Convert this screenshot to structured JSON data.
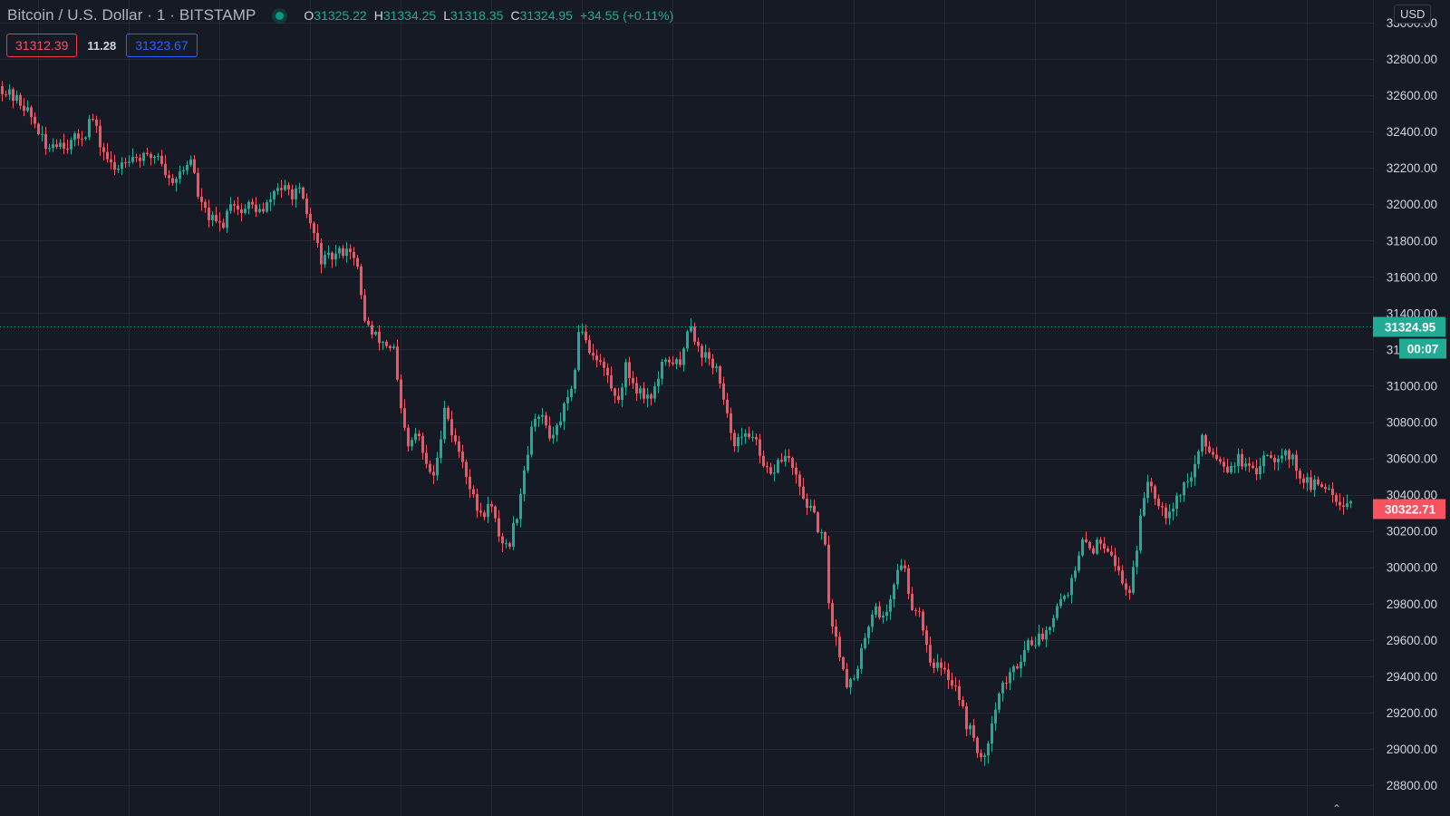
{
  "header": {
    "symbol_title": "Bitcoin / U.S. Dollar · 1 · BITSTAMP",
    "status": "market-open",
    "ohlc": {
      "o_label": "O",
      "o_value": "31325.22",
      "h_label": "H",
      "h_value": "31334.25",
      "l_label": "L",
      "l_value": "31318.35",
      "c_label": "C",
      "c_value": "31324.95",
      "change": "+34.55 (+0.11%)"
    }
  },
  "order_buttons": {
    "sell_price": "31312.39",
    "spread": "11.28",
    "buy_price": "31323.67"
  },
  "price_scale": {
    "currency": "USD",
    "ticks": [
      "33000.00",
      "32800.00",
      "32600.00",
      "32400.00",
      "32200.00",
      "32000.00",
      "31800.00",
      "31600.00",
      "31400.00",
      "31200.00",
      "31000.00",
      "30800.00",
      "30600.00",
      "30400.00",
      "30200.00",
      "30000.00",
      "29800.00",
      "29600.00",
      "29400.00",
      "29200.00",
      "29000.00",
      "28800.00"
    ],
    "last_price_label": "31324.95",
    "countdown_label": "00:07",
    "crosshair_price_label": "30322.71"
  },
  "colors": {
    "background": "#161a25",
    "grid": "#232733",
    "up": "#22ab94",
    "down": "#f7525f",
    "last_price": "#22ab94",
    "crosshair": "#f7525f",
    "axis_text": "#d1d4dc"
  },
  "chart_data": {
    "type": "candlestick",
    "title": "Bitcoin / U.S. Dollar · 1 · BITSTAMP",
    "ylim": [
      28750,
      33050
    ],
    "grid": true,
    "last_price": 31324.95,
    "crosshair_price": 30322.71,
    "price_path": [
      [
        0,
        32650
      ],
      [
        10,
        32600
      ],
      [
        25,
        32550
      ],
      [
        40,
        32430
      ],
      [
        50,
        32300
      ],
      [
        60,
        32350
      ],
      [
        75,
        32330
      ],
      [
        95,
        32400
      ],
      [
        100,
        32500
      ],
      [
        110,
        32330
      ],
      [
        125,
        32180
      ],
      [
        140,
        32270
      ],
      [
        160,
        32250
      ],
      [
        175,
        32280
      ],
      [
        185,
        32130
      ],
      [
        200,
        32170
      ],
      [
        210,
        32260
      ],
      [
        220,
        32000
      ],
      [
        235,
        31900
      ],
      [
        245,
        31880
      ],
      [
        255,
        32040
      ],
      [
        265,
        31950
      ],
      [
        275,
        32000
      ],
      [
        290,
        31950
      ],
      [
        305,
        32100
      ],
      [
        320,
        32060
      ],
      [
        330,
        32060
      ],
      [
        345,
        31850
      ],
      [
        355,
        31680
      ],
      [
        370,
        31720
      ],
      [
        385,
        31770
      ],
      [
        395,
        31620
      ],
      [
        400,
        31400
      ],
      [
        410,
        31280
      ],
      [
        425,
        31230
      ],
      [
        435,
        31200
      ],
      [
        440,
        30900
      ],
      [
        450,
        30650
      ],
      [
        460,
        30750
      ],
      [
        470,
        30550
      ],
      [
        480,
        30500
      ],
      [
        490,
        30900
      ],
      [
        500,
        30700
      ],
      [
        510,
        30600
      ],
      [
        520,
        30400
      ],
      [
        530,
        30280
      ],
      [
        540,
        30350
      ],
      [
        550,
        30180
      ],
      [
        560,
        30100
      ],
      [
        570,
        30300
      ],
      [
        580,
        30600
      ],
      [
        590,
        30850
      ],
      [
        600,
        30800
      ],
      [
        610,
        30700
      ],
      [
        620,
        30850
      ],
      [
        630,
        30950
      ],
      [
        640,
        31350
      ],
      [
        650,
        31200
      ],
      [
        660,
        31150
      ],
      [
        670,
        31050
      ],
      [
        680,
        30900
      ],
      [
        690,
        31100
      ],
      [
        700,
        31000
      ],
      [
        710,
        30950
      ],
      [
        720,
        30950
      ],
      [
        730,
        31100
      ],
      [
        740,
        31150
      ],
      [
        750,
        31100
      ],
      [
        760,
        31380
      ],
      [
        770,
        31200
      ],
      [
        780,
        31150
      ],
      [
        790,
        31100
      ],
      [
        800,
        30850
      ],
      [
        810,
        30700
      ],
      [
        820,
        30700
      ],
      [
        830,
        30750
      ],
      [
        840,
        30550
      ],
      [
        850,
        30500
      ],
      [
        860,
        30600
      ],
      [
        870,
        30600
      ],
      [
        880,
        30450
      ],
      [
        890,
        30350
      ],
      [
        900,
        30250
      ],
      [
        910,
        30100
      ],
      [
        915,
        29750
      ],
      [
        925,
        29550
      ],
      [
        935,
        29350
      ],
      [
        945,
        29400
      ],
      [
        955,
        29650
      ],
      [
        965,
        29800
      ],
      [
        975,
        29700
      ],
      [
        985,
        29900
      ],
      [
        995,
        30050
      ],
      [
        1005,
        29800
      ],
      [
        1015,
        29750
      ],
      [
        1025,
        29500
      ],
      [
        1035,
        29450
      ],
      [
        1045,
        29400
      ],
      [
        1055,
        29350
      ],
      [
        1065,
        29150
      ],
      [
        1075,
        29050
      ],
      [
        1085,
        28900
      ],
      [
        1095,
        29200
      ],
      [
        1105,
        29350
      ],
      [
        1115,
        29400
      ],
      [
        1125,
        29500
      ],
      [
        1135,
        29600
      ],
      [
        1145,
        29600
      ],
      [
        1155,
        29650
      ],
      [
        1165,
        29800
      ],
      [
        1175,
        29850
      ],
      [
        1185,
        29950
      ],
      [
        1195,
        30150
      ],
      [
        1205,
        30100
      ],
      [
        1215,
        30150
      ],
      [
        1225,
        30100
      ],
      [
        1235,
        29950
      ],
      [
        1245,
        29850
      ],
      [
        1255,
        30150
      ],
      [
        1265,
        30500
      ],
      [
        1275,
        30400
      ],
      [
        1285,
        30300
      ],
      [
        1295,
        30350
      ],
      [
        1305,
        30450
      ],
      [
        1315,
        30500
      ],
      [
        1325,
        30700
      ],
      [
        1335,
        30650
      ],
      [
        1345,
        30600
      ],
      [
        1355,
        30550
      ],
      [
        1365,
        30600
      ],
      [
        1375,
        30550
      ],
      [
        1385,
        30500
      ],
      [
        1395,
        30650
      ],
      [
        1405,
        30600
      ],
      [
        1415,
        30650
      ],
      [
        1425,
        30600
      ],
      [
        1435,
        30500
      ],
      [
        1445,
        30450
      ],
      [
        1455,
        30450
      ],
      [
        1465,
        30450
      ],
      [
        1475,
        30380
      ],
      [
        1485,
        30350
      ],
      [
        1492,
        30380
      ]
    ]
  }
}
